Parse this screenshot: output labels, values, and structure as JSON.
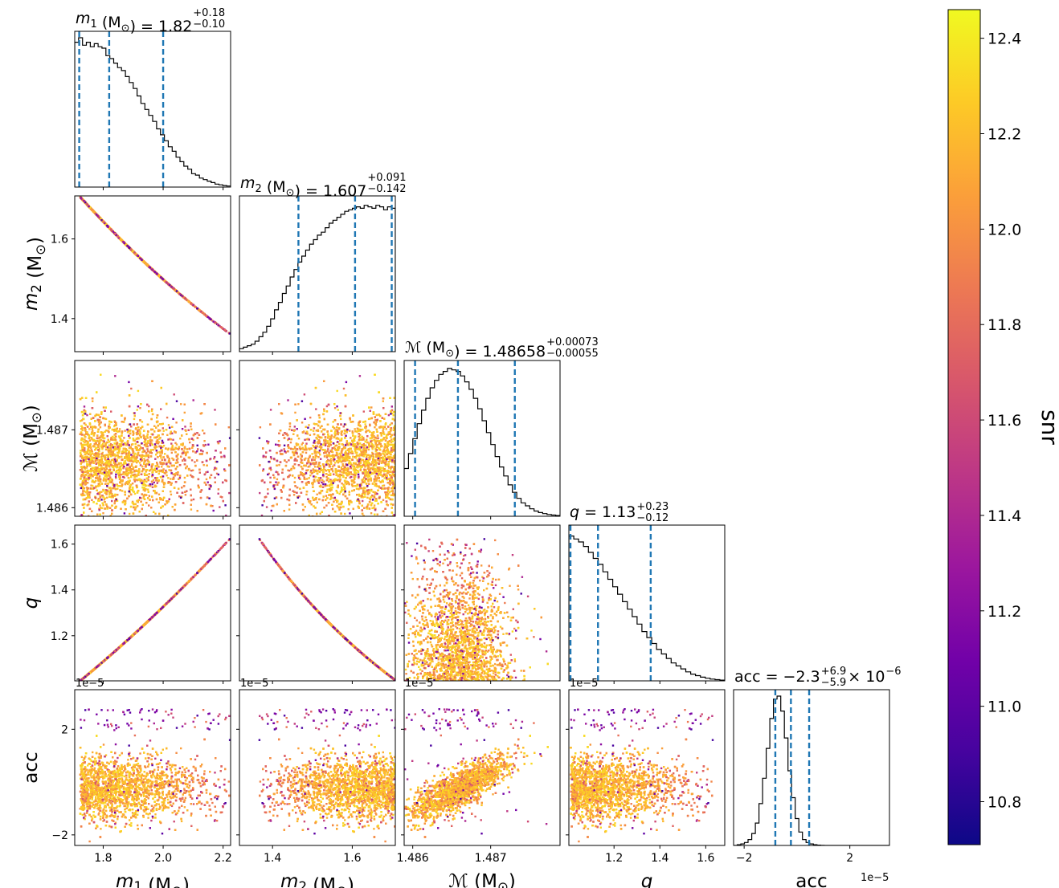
{
  "chart_data": {
    "type": "corner",
    "parameters": [
      {
        "key": "m1",
        "sym": "m",
        "sub": "1",
        "italic": true,
        "unit": "(M",
        "unit_sub": "⊙",
        "unit_close": ")",
        "range": [
          1.705,
          2.225
        ]
      },
      {
        "key": "m2",
        "sym": "m",
        "sub": "2",
        "italic": true,
        "unit": "(M",
        "unit_sub": "⊙",
        "unit_close": ")",
        "range": [
          1.317,
          1.708
        ]
      },
      {
        "key": "mc",
        "sym": "ℳ",
        "sub": "",
        "italic": false,
        "unit": "(M",
        "unit_sub": "⊙",
        "unit_close": ")",
        "range": [
          1.48589,
          1.48789
        ]
      },
      {
        "key": "q",
        "sym": "q",
        "sub": "",
        "italic": true,
        "unit": "",
        "unit_sub": "",
        "unit_close": "",
        "range": [
          1.003,
          1.683
        ]
      },
      {
        "key": "acc",
        "sym": "acc",
        "sub": "",
        "italic": false,
        "unit": "",
        "unit_sub": "",
        "unit_close": "",
        "range": [
          -2.4,
          3.5
        ]
      }
    ],
    "titles": [
      {
        "lhs": "m",
        "lhs_sub": "1",
        "lhs_italic": true,
        "unit": " (M",
        "unit_sub": "⊙",
        "eq": ") = 1.82",
        "sup": "+0.18",
        "sub": "−0.10",
        "tail": ""
      },
      {
        "lhs": "m",
        "lhs_sub": "2",
        "lhs_italic": true,
        "unit": " (M",
        "unit_sub": "⊙",
        "eq": ") = 1.607",
        "sup": "+0.091",
        "sub": "−0.142",
        "tail": ""
      },
      {
        "lhs": "ℳ",
        "lhs_sub": "",
        "lhs_italic": false,
        "unit": " (M",
        "unit_sub": "⊙",
        "eq": ") = 1.48658",
        "sup": "+0.00073",
        "sub": "−0.00055",
        "tail": ""
      },
      {
        "lhs": "q",
        "lhs_sub": "",
        "lhs_italic": true,
        "unit": "",
        "unit_sub": "",
        "eq": " = 1.13",
        "sup": "+0.23",
        "sub": "−0.12",
        "tail": ""
      },
      {
        "lhs": "acc",
        "lhs_sub": "",
        "lhs_italic": false,
        "unit": "",
        "unit_sub": "",
        "eq": " = −2.3",
        "sup": "+6.9",
        "sub": "−5.9",
        "tail": " × 10",
        "tail_sup": "−6"
      }
    ],
    "quantiles": [
      [
        1.72,
        1.82,
        2.0
      ],
      [
        1.465,
        1.607,
        1.699
      ],
      [
        1.48603,
        1.48658,
        1.48731
      ],
      [
        1.01,
        1.13,
        1.36
      ],
      [
        -0.82,
        -0.23,
        0.46
      ]
    ],
    "histograms": [
      [
        0.97,
        1.0,
        0.95,
        0.97,
        0.94,
        0.96,
        0.94,
        0.93,
        0.88,
        0.86,
        0.83,
        0.8,
        0.78,
        0.74,
        0.7,
        0.66,
        0.61,
        0.56,
        0.52,
        0.48,
        0.44,
        0.39,
        0.35,
        0.31,
        0.27,
        0.24,
        0.2,
        0.17,
        0.14,
        0.12,
        0.09,
        0.08,
        0.06,
        0.05,
        0.04,
        0.03,
        0.02,
        0.015,
        0.01,
        0.007
      ],
      [
        0.02,
        0.03,
        0.04,
        0.05,
        0.07,
        0.1,
        0.13,
        0.17,
        0.22,
        0.28,
        0.33,
        0.39,
        0.44,
        0.5,
        0.55,
        0.6,
        0.64,
        0.68,
        0.72,
        0.75,
        0.78,
        0.8,
        0.83,
        0.86,
        0.88,
        0.9,
        0.92,
        0.94,
        0.95,
        0.96,
        0.97,
        0.96,
        0.98,
        0.97,
        0.96,
        0.98,
        0.97,
        0.95,
        0.97,
        0.96
      ],
      [
        0.32,
        0.42,
        0.52,
        0.62,
        0.71,
        0.79,
        0.86,
        0.91,
        0.95,
        0.97,
        0.99,
        0.98,
        0.97,
        0.94,
        0.9,
        0.85,
        0.79,
        0.72,
        0.64,
        0.56,
        0.48,
        0.4,
        0.33,
        0.27,
        0.21,
        0.16,
        0.12,
        0.09,
        0.07,
        0.05,
        0.035,
        0.025,
        0.018,
        0.012,
        0.008,
        0.005
      ],
      [
        0.97,
        0.95,
        0.93,
        0.9,
        0.86,
        0.82,
        0.78,
        0.73,
        0.68,
        0.63,
        0.58,
        0.53,
        0.48,
        0.43,
        0.38,
        0.33,
        0.29,
        0.25,
        0.21,
        0.18,
        0.15,
        0.12,
        0.1,
        0.08,
        0.06,
        0.045,
        0.035,
        0.025,
        0.018,
        0.012,
        0.008,
        0.005
      ],
      [
        0,
        0.005,
        0.01,
        0.02,
        0.04,
        0.08,
        0.15,
        0.28,
        0.45,
        0.65,
        0.85,
        0.98,
        1.0,
        0.9,
        0.72,
        0.5,
        0.32,
        0.18,
        0.09,
        0.04,
        0.02,
        0.01,
        0.005,
        0.002,
        0.001,
        0,
        0,
        0,
        0,
        0,
        0,
        0,
        0,
        0,
        0,
        0,
        0,
        0,
        0,
        0,
        0,
        0,
        0
      ]
    ],
    "ticks": [
      {
        "values": [
          1.8,
          2.0,
          2.2
        ],
        "labels": [
          "1.8",
          "2.0",
          "2.2"
        ],
        "offset": ""
      },
      {
        "values": [
          1.4,
          1.6
        ],
        "labels": [
          "1.4",
          "1.6"
        ],
        "offset": ""
      },
      {
        "values": [
          1.486,
          1.487
        ],
        "labels": [
          "1.486",
          "1.487"
        ],
        "offset": ""
      },
      {
        "values": [
          1.2,
          1.4,
          1.6
        ],
        "labels": [
          "1.2",
          "1.4",
          "1.6"
        ],
        "offset": ""
      },
      {
        "values": [
          -2,
          2
        ],
        "labels": [
          "−2",
          "2"
        ],
        "offset": "1e−5"
      }
    ],
    "offset_label": "1e−5",
    "colorbar": {
      "label": "snr",
      "range": [
        10.71,
        12.46
      ],
      "ticks": [
        10.8,
        11.0,
        11.2,
        11.4,
        11.6,
        11.8,
        12.0,
        12.2,
        12.4
      ],
      "tick_labels": [
        "10.8",
        "11.0",
        "11.2",
        "11.4",
        "11.6",
        "11.8",
        "12.0",
        "12.2",
        "12.4"
      ],
      "colormap": "plasma",
      "stops": [
        "#0d0887",
        "#46039f",
        "#7201a8",
        "#9c179e",
        "#bd3786",
        "#d8576b",
        "#ed7953",
        "#fb9f3a",
        "#fdca26",
        "#f0f921"
      ]
    },
    "grid": false,
    "line_color": "#000000",
    "quantile_color": "#1f77b4"
  }
}
